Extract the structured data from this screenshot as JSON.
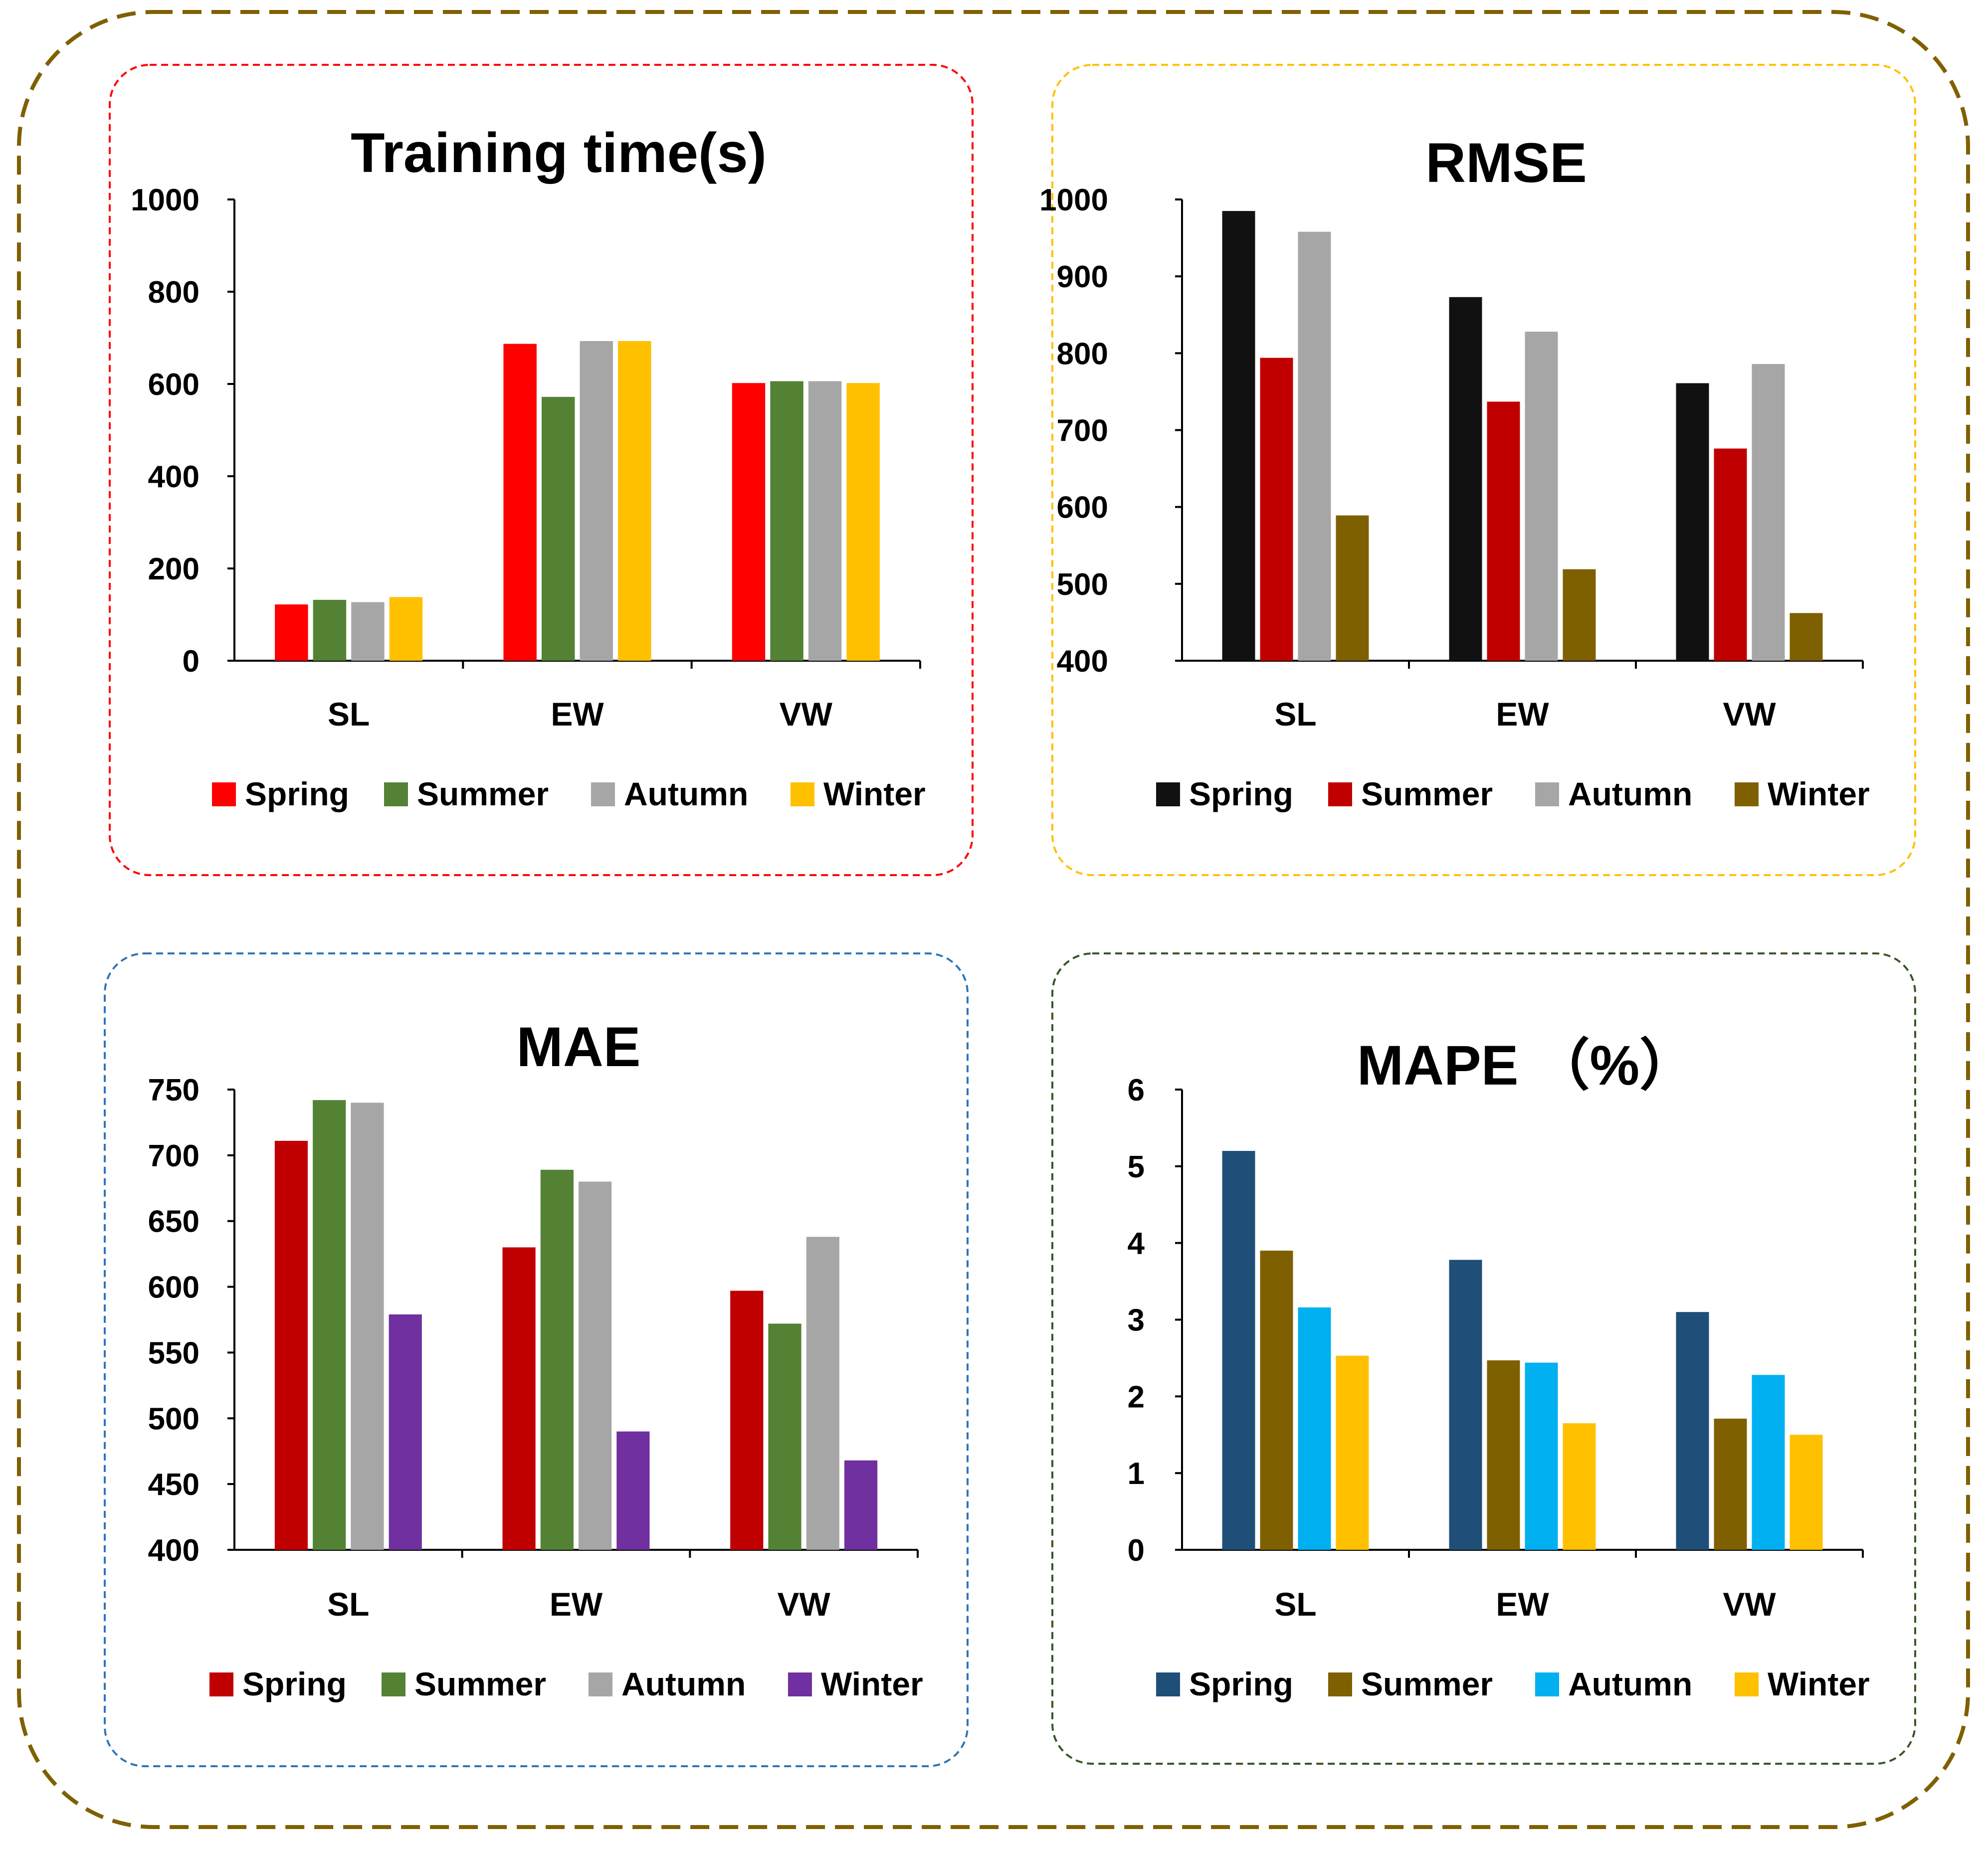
{
  "chart_data": [
    {
      "type": "bar",
      "title": "Training time(s)",
      "categories": [
        "SL",
        "EW",
        "VW"
      ],
      "ylim": [
        0,
        1000
      ],
      "yticks": [
        0,
        200,
        400,
        600,
        800,
        1000
      ],
      "legend_position": "bottom",
      "series": [
        {
          "name": "Spring",
          "color": "#ff0000",
          "values": [
            122,
            687,
            602
          ]
        },
        {
          "name": "Summer",
          "color": "#548235",
          "values": [
            132,
            572,
            606
          ]
        },
        {
          "name": "Autumn",
          "color": "#a6a6a6",
          "values": [
            127,
            693,
            606
          ]
        },
        {
          "name": "Winter",
          "color": "#ffc000",
          "values": [
            138,
            693,
            602
          ]
        }
      ]
    },
    {
      "type": "bar",
      "title": "RMSE",
      "categories": [
        "SL",
        "EW",
        "VW"
      ],
      "ylim": [
        400,
        1000
      ],
      "yticks": [
        400,
        500,
        600,
        700,
        800,
        900,
        1000
      ],
      "legend_position": "bottom",
      "series": [
        {
          "name": "Spring",
          "color": "#111111",
          "values": [
            985,
            873,
            761
          ]
        },
        {
          "name": "Summer",
          "color": "#c00000",
          "values": [
            794,
            737,
            676
          ]
        },
        {
          "name": "Autumn",
          "color": "#a6a6a6",
          "values": [
            958,
            828,
            786
          ]
        },
        {
          "name": "Winter",
          "color": "#7f6000",
          "values": [
            589,
            519,
            462
          ]
        }
      ]
    },
    {
      "type": "bar",
      "title": "MAE",
      "categories": [
        "SL",
        "EW",
        "VW"
      ],
      "ylim": [
        400,
        750
      ],
      "yticks": [
        400,
        450,
        500,
        550,
        600,
        650,
        700,
        750
      ],
      "legend_position": "bottom",
      "series": [
        {
          "name": "Spring",
          "color": "#c00000",
          "values": [
            711,
            630,
            597
          ]
        },
        {
          "name": "Summer",
          "color": "#548235",
          "values": [
            742,
            689,
            572
          ]
        },
        {
          "name": "Autumn",
          "color": "#a6a6a6",
          "values": [
            740,
            680,
            638
          ]
        },
        {
          "name": "Winter",
          "color": "#7030a0",
          "values": [
            579,
            490,
            468
          ]
        }
      ]
    },
    {
      "type": "bar",
      "title": "MAPE （%）",
      "categories": [
        "SL",
        "EW",
        "VW"
      ],
      "ylim": [
        0,
        6
      ],
      "yticks": [
        0,
        1,
        2,
        3,
        4,
        5,
        6
      ],
      "legend_position": "bottom",
      "series": [
        {
          "name": "Spring",
          "color": "#1f4e79",
          "values": [
            5.2,
            3.78,
            3.1
          ]
        },
        {
          "name": "Summer",
          "color": "#7f6000",
          "values": [
            3.9,
            2.47,
            1.71
          ]
        },
        {
          "name": "Autumn",
          "color": "#00b0f0",
          "values": [
            3.16,
            2.44,
            2.28
          ]
        },
        {
          "name": "Winter",
          "color": "#ffc000",
          "values": [
            2.53,
            1.65,
            1.5
          ]
        }
      ]
    }
  ],
  "panel_border_colors": [
    "#ff0000",
    "#ffc000",
    "#2e75b6",
    "#375623"
  ],
  "outer_border_color": "#7f6000"
}
